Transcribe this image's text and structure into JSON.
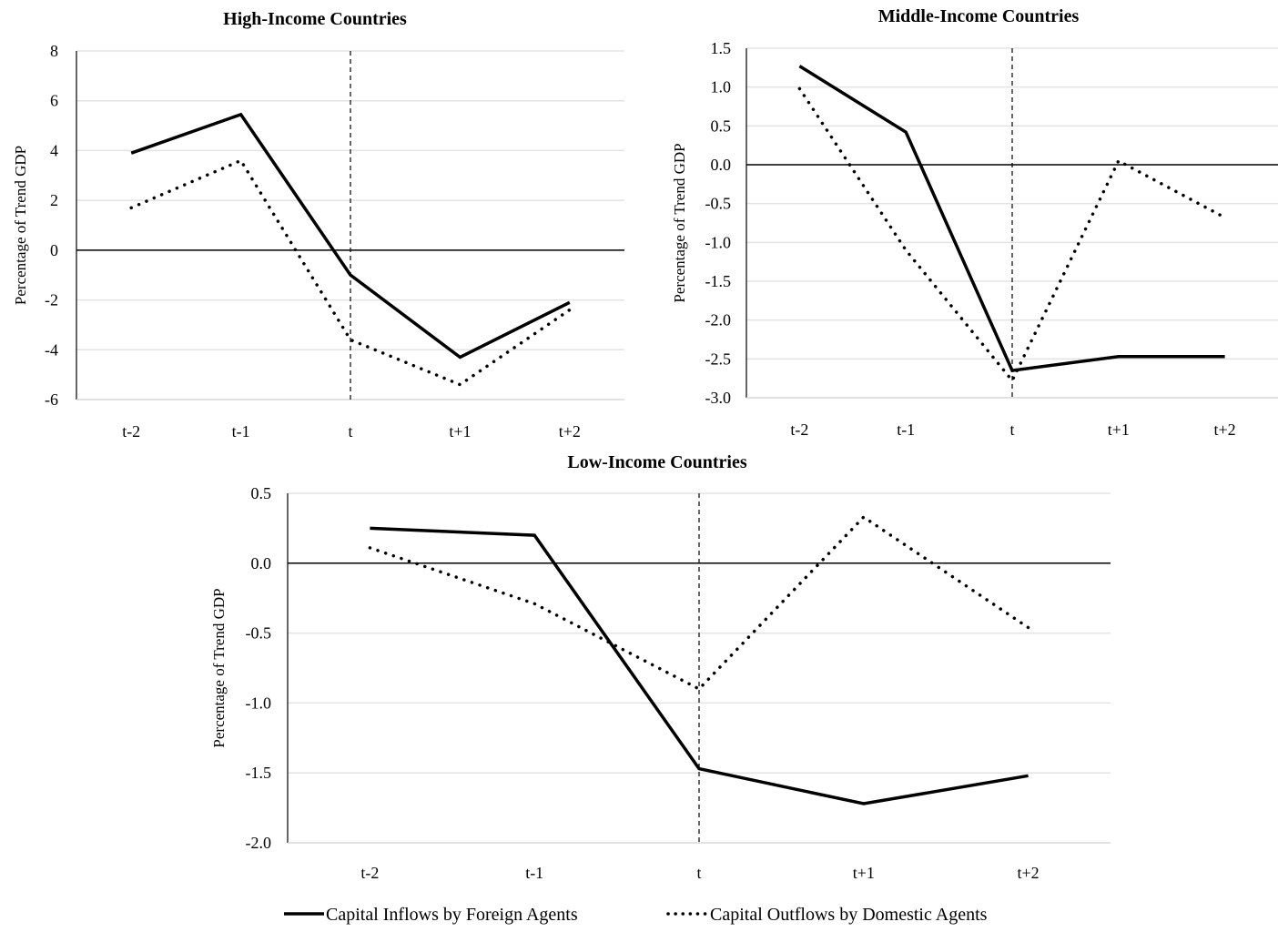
{
  "chart_data": [
    {
      "type": "line",
      "title": "High-Income Countries",
      "xlabel": "",
      "ylabel": "Percentage of Trend GDP",
      "categories": [
        "t-2",
        "t-1",
        "t",
        "t+1",
        "t+2"
      ],
      "ylim": [
        -6,
        8
      ],
      "yticks": [
        "8",
        "6",
        "4",
        "2",
        "0",
        "-2",
        "-4",
        "-6"
      ],
      "ytick_values": [
        8,
        6,
        4,
        2,
        0,
        -2,
        -4,
        -6
      ],
      "grid": true,
      "event_marker": "t",
      "series": [
        {
          "name": "Capital Inflows by Foreign Agents",
          "style": "solid",
          "values": [
            3.9,
            5.45,
            -1.0,
            -4.3,
            -2.1
          ]
        },
        {
          "name": "Capital Outflows by Domestic Agents",
          "style": "dotted",
          "values": [
            1.7,
            3.6,
            -3.6,
            -5.4,
            -2.4
          ]
        }
      ]
    },
    {
      "type": "line",
      "title": "Middle-Income Countries",
      "xlabel": "",
      "ylabel": "Percentage of Trend GDP",
      "categories": [
        "t-2",
        "t-1",
        "t",
        "t+1",
        "t+2"
      ],
      "ylim": [
        -3.0,
        1.5
      ],
      "yticks": [
        "1.5",
        "1.0",
        "0.5",
        "0.0",
        "-0.5",
        "-1.0",
        "-1.5",
        "-2.0",
        "-2.5",
        "-3.0"
      ],
      "ytick_values": [
        1.5,
        1.0,
        0.5,
        0.0,
        -0.5,
        -1.0,
        -1.5,
        -2.0,
        -2.5,
        -3.0
      ],
      "grid": true,
      "event_marker": "t",
      "series": [
        {
          "name": "Capital Inflows by Foreign Agents",
          "style": "solid",
          "values": [
            1.27,
            0.42,
            -2.65,
            -2.47,
            -2.47
          ]
        },
        {
          "name": "Capital Outflows by Domestic Agents",
          "style": "dotted",
          "values": [
            0.98,
            -1.1,
            -2.78,
            0.05,
            -0.68
          ]
        }
      ]
    },
    {
      "type": "line",
      "title": "Low-Income Countries",
      "xlabel": "",
      "ylabel": "Percentage of Trend GDP",
      "categories": [
        "t-2",
        "t-1",
        "t",
        "t+1",
        "t+2"
      ],
      "ylim": [
        -2.0,
        0.5
      ],
      "yticks": [
        "0.5",
        "0.0",
        "-0.5",
        "-1.0",
        "-1.5",
        "-2.0"
      ],
      "ytick_values": [
        0.5,
        0.0,
        -0.5,
        -1.0,
        -1.5,
        -2.0
      ],
      "grid": true,
      "event_marker": "t",
      "series": [
        {
          "name": "Capital Inflows by Foreign Agents",
          "style": "solid",
          "values": [
            0.25,
            0.2,
            -1.47,
            -1.72,
            -1.52
          ]
        },
        {
          "name": "Capital Outflows by Domestic Agents",
          "style": "dotted",
          "values": [
            0.11,
            -0.29,
            -0.9,
            0.33,
            -0.46
          ]
        }
      ]
    }
  ],
  "legend": {
    "placement": "bottom",
    "items": [
      {
        "label": "Capital Inflows by Foreign Agents",
        "style": "solid"
      },
      {
        "label": "Capital Outflows by Domestic Agents",
        "style": "dotted"
      }
    ]
  }
}
